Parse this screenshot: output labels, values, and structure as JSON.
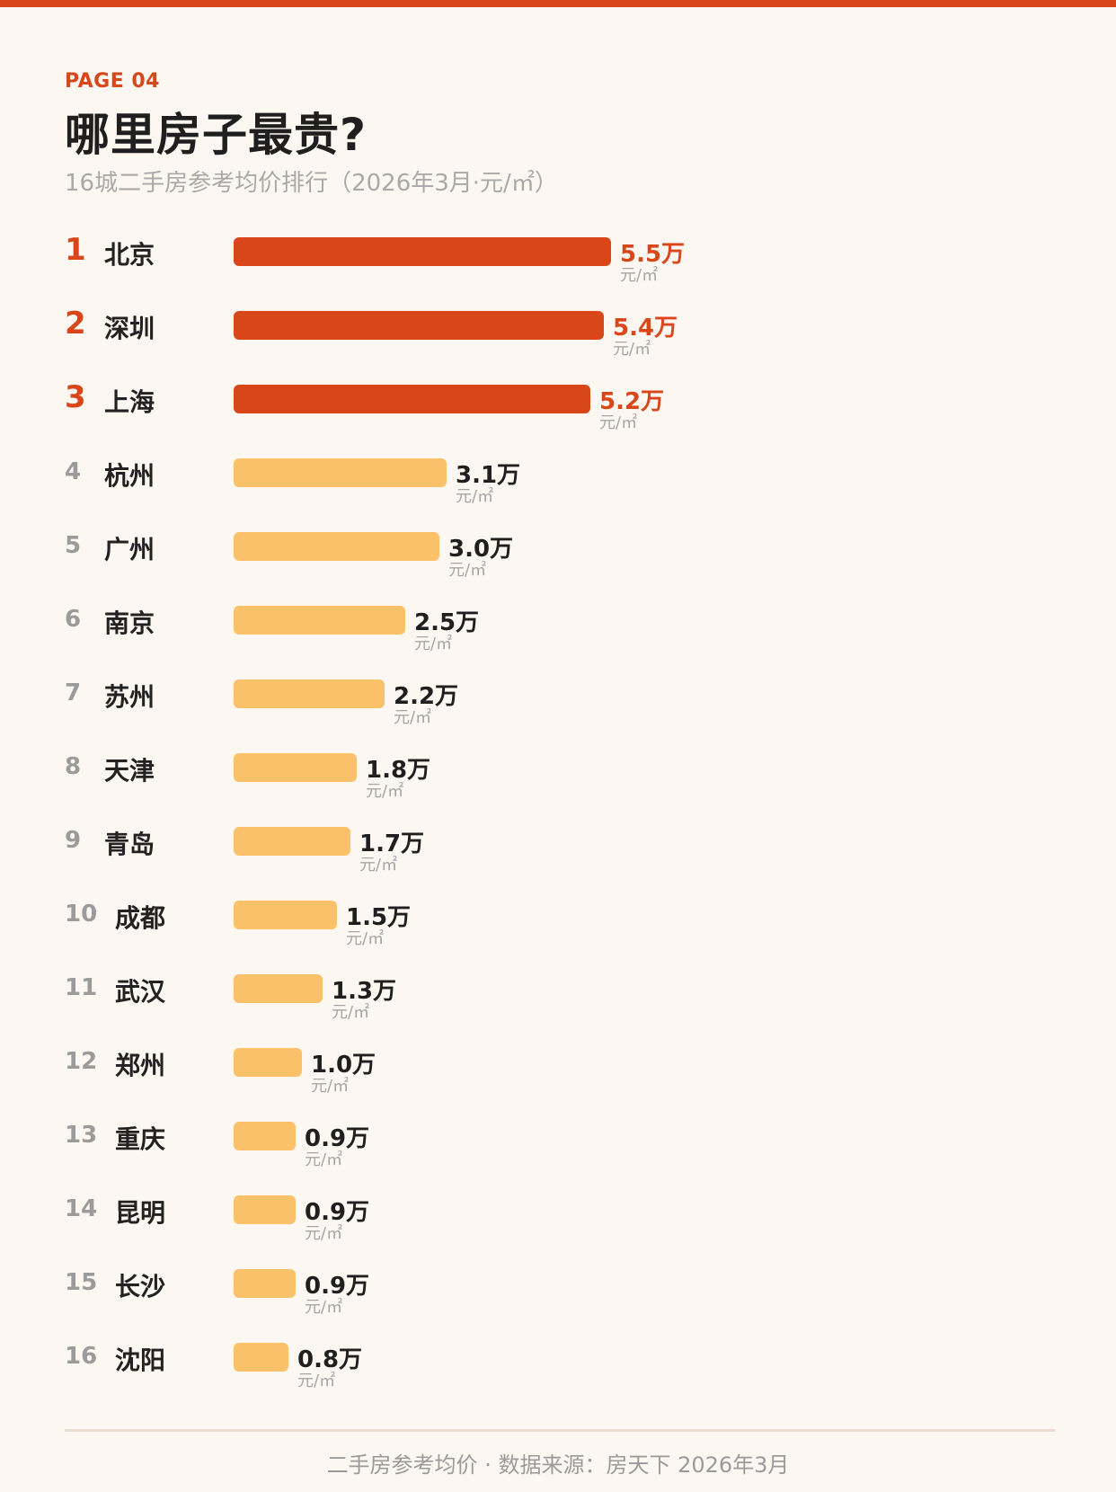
{
  "colors": {
    "accent": "#d9461a",
    "bar_top": "#d9461a",
    "bar_rest": "#fbc06a",
    "background": "#fdf7f1"
  },
  "header": {
    "page_label": "PAGE 04",
    "title": "哪里房子最贵?",
    "subtitle": "16城二手房参考均价排行（2026年3月·元/㎡）"
  },
  "footer": {
    "text": "二手房参考均价 · 数据来源：房天下 2026年3月"
  },
  "chart_data": {
    "type": "bar",
    "orientation": "horizontal",
    "title": "哪里房子最贵?",
    "subtitle": "16城二手房参考均价排行（2026年3月·元/㎡）",
    "unit_label": "元/㎡",
    "highlight_top_n": 3,
    "ranks": [
      "1",
      "2",
      "3",
      "4",
      "5",
      "6",
      "7",
      "8",
      "9",
      "10",
      "11",
      "12",
      "13",
      "14",
      "15",
      "16"
    ],
    "categories": [
      "北京",
      "深圳",
      "上海",
      "杭州",
      "广州",
      "南京",
      "苏州",
      "天津",
      "青岛",
      "成都",
      "武汉",
      "郑州",
      "重庆",
      "昆明",
      "长沙",
      "沈阳"
    ],
    "values": [
      5.5,
      5.4,
      5.2,
      3.1,
      3.0,
      2.5,
      2.2,
      1.8,
      1.7,
      1.5,
      1.3,
      1.0,
      0.9,
      0.9,
      0.9,
      0.8
    ],
    "value_labels": [
      "5.5万",
      "5.4万",
      "5.2万",
      "3.1万",
      "3.0万",
      "2.5万",
      "2.2万",
      "1.8万",
      "1.7万",
      "1.5万",
      "1.3万",
      "1.0万",
      "0.9万",
      "0.9万",
      "0.9万",
      "0.8万"
    ],
    "grid": false,
    "legend": "none"
  }
}
